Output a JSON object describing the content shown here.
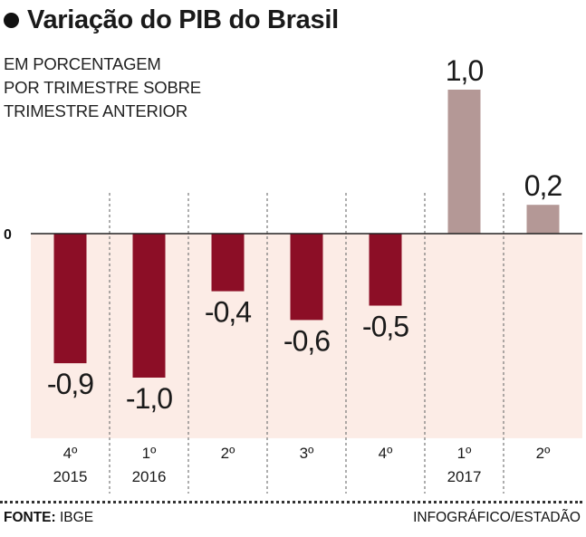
{
  "header": {
    "title": "Variação do PIB do Brasil",
    "subtitle": "EM PORCENTAGEM\nPOR TRIMESTRE SOBRE\nTRIMESTRE ANTERIOR"
  },
  "footer": {
    "source_label": "FONTE:",
    "source_value": "IBGE",
    "credit": "INFOGRÁFICO/ESTADÃO"
  },
  "colors": {
    "negative_bar": "#8c0e26",
    "positive_bar": "#b49896",
    "negative_zone": "#fcece6",
    "divider": "#777777",
    "axis": "#222222"
  },
  "chart_data": {
    "type": "bar",
    "title": "Variação do PIB do Brasil",
    "ylabel": "EM PORCENTAGEM POR TRIMESTRE SOBRE TRIMESTRE ANTERIOR",
    "zero_label": "0",
    "ylim": [
      -1.45,
      1.0
    ],
    "categories": [
      {
        "quarter": "4º",
        "year": "2015"
      },
      {
        "quarter": "1º",
        "year": "2016"
      },
      {
        "quarter": "2º",
        "year": ""
      },
      {
        "quarter": "3º",
        "year": ""
      },
      {
        "quarter": "4º",
        "year": ""
      },
      {
        "quarter": "1º",
        "year": "2017"
      },
      {
        "quarter": "2º",
        "year": ""
      }
    ],
    "values": [
      -0.9,
      -1.0,
      -0.4,
      -0.6,
      -0.5,
      1.0,
      0.2
    ],
    "labels": [
      "-0,9",
      "-1,0",
      "-0,4",
      "-0,6",
      "-0,5",
      "1,0",
      "0,2"
    ]
  }
}
